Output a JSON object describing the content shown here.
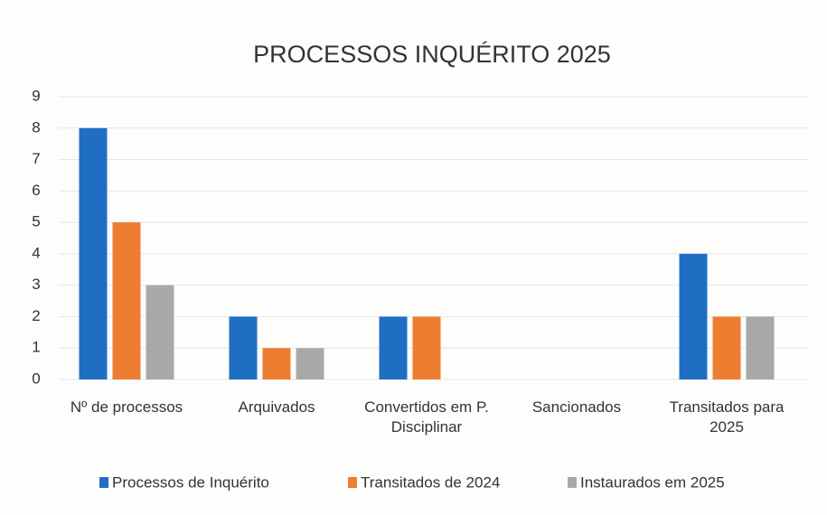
{
  "chart_data": {
    "type": "bar",
    "title": "PROCESSOS INQUÉRITO 2025",
    "categories": [
      "Nº de processos",
      "Arquivados",
      "Convertidos em P. Disciplinar",
      "Sancionados",
      "Transitados para 2025"
    ],
    "series": [
      {
        "name": "Processos de Inquérito",
        "color": "#1f6ec4",
        "values": [
          8,
          2,
          2,
          0,
          4
        ]
      },
      {
        "name": "Transitados de 2024",
        "color": "#ed7d31",
        "values": [
          5,
          1,
          2,
          0,
          2
        ]
      },
      {
        "name": "Instaurados em 2025",
        "color": "#a8a8a8",
        "values": [
          3,
          1,
          0,
          0,
          2
        ]
      }
    ],
    "ylim": [
      0,
      9
    ],
    "yticks": [
      0,
      1,
      2,
      3,
      4,
      5,
      6,
      7,
      8,
      9
    ],
    "grid": true,
    "legend": "bottom"
  }
}
